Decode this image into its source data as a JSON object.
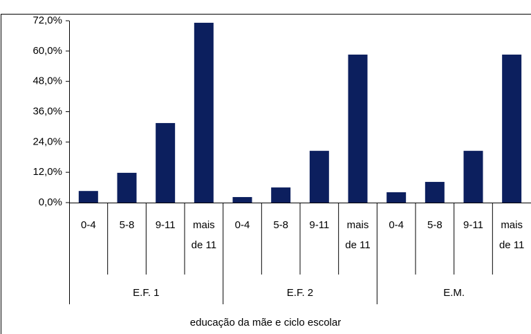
{
  "chart_data": {
    "type": "bar",
    "categories": [
      "0-4",
      "5-8",
      "9-11",
      "mais de 11",
      "0-4",
      "5-8",
      "9-11",
      "mais de 11",
      "0-4",
      "5-8",
      "9-11",
      "mais de 11"
    ],
    "groups": [
      "E.F. 1",
      "E.F. 2",
      "E.M."
    ],
    "values": [
      4.6,
      11.8,
      31.5,
      71.2,
      2.2,
      6.0,
      20.5,
      58.6,
      4.1,
      8.2,
      20.5,
      58.6
    ],
    "color": "#0c1f5e",
    "x_label": "educação da mãe e ciclo escolar",
    "ylim": [
      0,
      72
    ],
    "yticks": [
      {
        "value": 0,
        "label": "0,0%"
      },
      {
        "value": 12,
        "label": "12,0%"
      },
      {
        "value": 24,
        "label": "24,0%"
      },
      {
        "value": 36,
        "label": "36,0%"
      },
      {
        "value": 48,
        "label": "48,0%"
      },
      {
        "value": 60,
        "label": "60,0%"
      },
      {
        "value": 72,
        "label": "72,0%"
      }
    ],
    "grid": false
  }
}
